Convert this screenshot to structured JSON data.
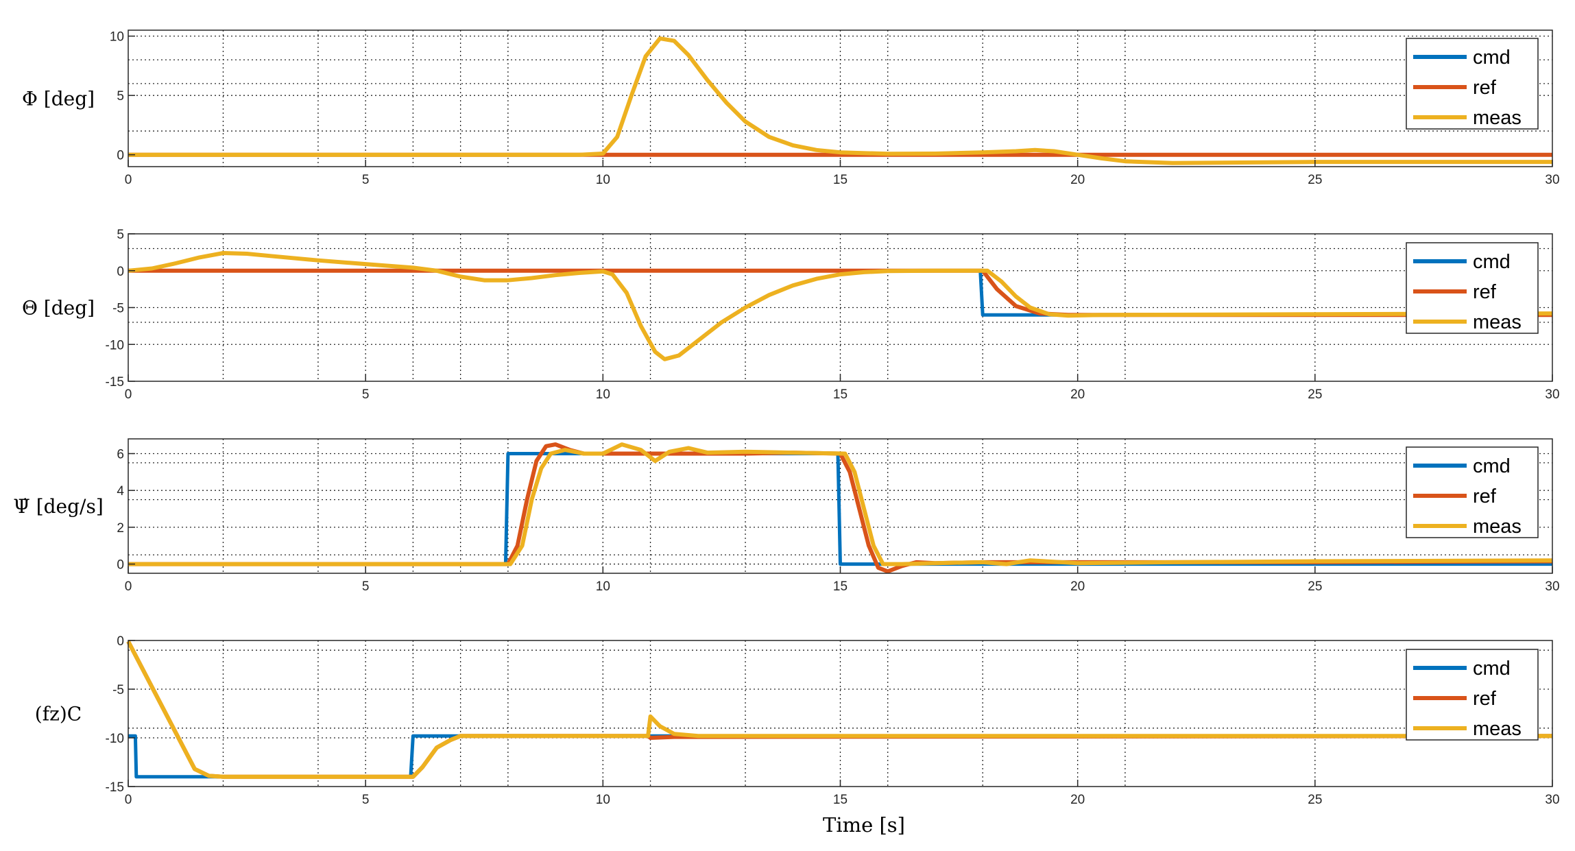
{
  "figure": {
    "xlabel": "Time [s]"
  },
  "legend": [
    "cmd",
    "ref",
    "meas"
  ],
  "colors": {
    "cmd": "#0072BD",
    "ref": "#D95319",
    "meas": "#EDB120"
  },
  "chart_data": [
    {
      "type": "line",
      "ylabel": "Φ [deg]",
      "xlim": [
        0,
        30
      ],
      "ylim": [
        -1,
        10.5
      ],
      "xticks": [
        0,
        5,
        10,
        15,
        20,
        25,
        30
      ],
      "yticks": [
        0,
        5,
        10
      ],
      "grid": "dotted",
      "legend_position": "top-right",
      "series": [
        {
          "name": "cmd",
          "points": [
            [
              0,
              0
            ],
            [
              30,
              0
            ]
          ]
        },
        {
          "name": "ref",
          "points": [
            [
              0,
              0
            ],
            [
              30,
              0
            ]
          ]
        },
        {
          "name": "meas",
          "points": [
            [
              0,
              0
            ],
            [
              9.5,
              0
            ],
            [
              10,
              0.1
            ],
            [
              10.3,
              1.5
            ],
            [
              10.6,
              5
            ],
            [
              10.9,
              8.3
            ],
            [
              11.2,
              9.8
            ],
            [
              11.5,
              9.6
            ],
            [
              11.8,
              8.4
            ],
            [
              12.2,
              6.3
            ],
            [
              12.6,
              4.4
            ],
            [
              13,
              2.8
            ],
            [
              13.5,
              1.5
            ],
            [
              14,
              0.8
            ],
            [
              14.5,
              0.4
            ],
            [
              15,
              0.2
            ],
            [
              16,
              0.08
            ],
            [
              17,
              0.1
            ],
            [
              18,
              0.2
            ],
            [
              18.7,
              0.3
            ],
            [
              19.1,
              0.4
            ],
            [
              19.5,
              0.3
            ],
            [
              20,
              0
            ],
            [
              20.5,
              -0.3
            ],
            [
              21,
              -0.55
            ],
            [
              22,
              -0.7
            ],
            [
              25,
              -0.6
            ],
            [
              28,
              -0.6
            ],
            [
              30,
              -0.6
            ]
          ]
        }
      ]
    },
    {
      "type": "line",
      "ylabel": "Θ [deg]",
      "xlim": [
        0,
        30
      ],
      "ylim": [
        -15,
        5
      ],
      "xticks": [
        0,
        5,
        10,
        15,
        20,
        25,
        30
      ],
      "yticks": [
        -15,
        -10,
        -5,
        0,
        5
      ],
      "grid": "dotted",
      "legend_position": "top-right",
      "series": [
        {
          "name": "cmd",
          "points": [
            [
              0,
              0
            ],
            [
              17.95,
              0
            ],
            [
              18,
              -6
            ],
            [
              30,
              -6
            ]
          ]
        },
        {
          "name": "ref",
          "points": [
            [
              0,
              0
            ],
            [
              18,
              0
            ],
            [
              18.3,
              -2.5
            ],
            [
              18.7,
              -4.8
            ],
            [
              19.2,
              -5.8
            ],
            [
              19.8,
              -6
            ],
            [
              30,
              -6
            ]
          ]
        },
        {
          "name": "meas",
          "points": [
            [
              0,
              0
            ],
            [
              0.5,
              0.3
            ],
            [
              1,
              1
            ],
            [
              1.5,
              1.8
            ],
            [
              2,
              2.4
            ],
            [
              2.5,
              2.3
            ],
            [
              3,
              2
            ],
            [
              4,
              1.4
            ],
            [
              5,
              0.9
            ],
            [
              6,
              0.4
            ],
            [
              6.5,
              0
            ],
            [
              7,
              -0.8
            ],
            [
              7.5,
              -1.3
            ],
            [
              8,
              -1.3
            ],
            [
              8.5,
              -1
            ],
            [
              9,
              -0.6
            ],
            [
              9.5,
              -0.3
            ],
            [
              10,
              -0.1
            ],
            [
              10.2,
              -0.5
            ],
            [
              10.5,
              -3
            ],
            [
              10.8,
              -7.5
            ],
            [
              11.1,
              -11
            ],
            [
              11.3,
              -12
            ],
            [
              11.6,
              -11.5
            ],
            [
              12,
              -9.5
            ],
            [
              12.5,
              -7
            ],
            [
              13,
              -5
            ],
            [
              13.5,
              -3.3
            ],
            [
              14,
              -2
            ],
            [
              14.5,
              -1.1
            ],
            [
              15,
              -0.5
            ],
            [
              15.5,
              -0.2
            ],
            [
              16,
              -0.05
            ],
            [
              17,
              0
            ],
            [
              18.1,
              0
            ],
            [
              18.4,
              -1.5
            ],
            [
              18.7,
              -3.5
            ],
            [
              19,
              -5
            ],
            [
              19.4,
              -5.9
            ],
            [
              19.8,
              -6.1
            ],
            [
              20.5,
              -6
            ],
            [
              25,
              -5.9
            ],
            [
              30,
              -5.8
            ]
          ]
        }
      ]
    },
    {
      "type": "line",
      "ylabel": "Ψ̇ [deg/s]",
      "xlim": [
        0,
        30
      ],
      "ylim": [
        -0.5,
        6.8
      ],
      "xticks": [
        0,
        5,
        10,
        15,
        20,
        25,
        30
      ],
      "yticks": [
        0,
        2,
        4,
        6
      ],
      "grid": "dotted",
      "legend_position": "top-right",
      "series": [
        {
          "name": "cmd",
          "points": [
            [
              0,
              0
            ],
            [
              7.95,
              0
            ],
            [
              8,
              6
            ],
            [
              14.95,
              6
            ],
            [
              15,
              0
            ],
            [
              30,
              0
            ]
          ]
        },
        {
          "name": "ref",
          "points": [
            [
              0,
              0
            ],
            [
              8,
              0
            ],
            [
              8.2,
              1
            ],
            [
              8.4,
              3.5
            ],
            [
              8.6,
              5.6
            ],
            [
              8.8,
              6.4
            ],
            [
              9,
              6.5
            ],
            [
              9.3,
              6.2
            ],
            [
              9.6,
              6
            ],
            [
              10,
              6
            ],
            [
              11,
              6
            ],
            [
              13,
              6
            ],
            [
              14,
              6.05
            ],
            [
              15,
              6
            ],
            [
              15.2,
              5
            ],
            [
              15.4,
              3
            ],
            [
              15.6,
              1
            ],
            [
              15.8,
              -0.2
            ],
            [
              16,
              -0.4
            ],
            [
              16.3,
              -0.1
            ],
            [
              16.6,
              0.1
            ],
            [
              17,
              0.05
            ],
            [
              18,
              0.1
            ],
            [
              19,
              0.1
            ],
            [
              20,
              0.1
            ],
            [
              25,
              0.1
            ],
            [
              30,
              0.15
            ]
          ]
        },
        {
          "name": "meas",
          "points": [
            [
              0,
              0
            ],
            [
              8.05,
              0
            ],
            [
              8.3,
              1
            ],
            [
              8.5,
              3.5
            ],
            [
              8.7,
              5.2
            ],
            [
              8.9,
              6
            ],
            [
              9.2,
              6.2
            ],
            [
              9.6,
              6
            ],
            [
              10,
              6
            ],
            [
              10.4,
              6.5
            ],
            [
              10.8,
              6.2
            ],
            [
              11.1,
              5.6
            ],
            [
              11.4,
              6.1
            ],
            [
              11.8,
              6.3
            ],
            [
              12.2,
              6.05
            ],
            [
              13,
              6.1
            ],
            [
              14,
              6.05
            ],
            [
              15.1,
              6
            ],
            [
              15.3,
              5
            ],
            [
              15.5,
              3
            ],
            [
              15.7,
              1
            ],
            [
              15.9,
              0
            ],
            [
              16.3,
              0
            ],
            [
              17,
              0.05
            ],
            [
              18,
              0.1
            ],
            [
              18.5,
              0
            ],
            [
              19,
              0.2
            ],
            [
              20,
              0.05
            ],
            [
              22,
              0.1
            ],
            [
              25,
              0.15
            ],
            [
              30,
              0.2
            ]
          ]
        }
      ]
    },
    {
      "type": "line",
      "ylabel": "(fz)C",
      "xlim": [
        0,
        30
      ],
      "ylim": [
        -15,
        0
      ],
      "xticks": [
        0,
        5,
        10,
        15,
        20,
        25,
        30
      ],
      "yticks": [
        -15,
        -10,
        -5,
        0
      ],
      "grid": "dotted",
      "legend_position": "top-right",
      "series": [
        {
          "name": "cmd",
          "points": [
            [
              0,
              -9.8
            ],
            [
              0.15,
              -9.8
            ],
            [
              0.17,
              -14
            ],
            [
              5.95,
              -14
            ],
            [
              6,
              -9.8
            ],
            [
              30,
              -9.8
            ]
          ]
        },
        {
          "name": "ref",
          "points": [
            [
              0,
              -0.1
            ],
            [
              1.4,
              -13.2
            ],
            [
              1.7,
              -13.9
            ],
            [
              2,
              -14
            ],
            [
              6,
              -14
            ],
            [
              6.2,
              -13
            ],
            [
              6.5,
              -11
            ],
            [
              6.8,
              -10.2
            ],
            [
              7,
              -9.8
            ],
            [
              10.95,
              -9.8
            ],
            [
              11,
              -10
            ],
            [
              11.5,
              -9.9
            ],
            [
              30,
              -9.8
            ]
          ]
        },
        {
          "name": "meas",
          "points": [
            [
              0,
              -0.1
            ],
            [
              1.4,
              -13.2
            ],
            [
              1.7,
              -13.9
            ],
            [
              2,
              -14
            ],
            [
              6,
              -14
            ],
            [
              6.2,
              -13
            ],
            [
              6.5,
              -11
            ],
            [
              6.8,
              -10.2
            ],
            [
              7,
              -9.8
            ],
            [
              10.95,
              -9.8
            ],
            [
              11,
              -7.8
            ],
            [
              11.2,
              -8.8
            ],
            [
              11.5,
              -9.6
            ],
            [
              12,
              -9.8
            ],
            [
              30,
              -9.8
            ]
          ]
        }
      ]
    }
  ]
}
